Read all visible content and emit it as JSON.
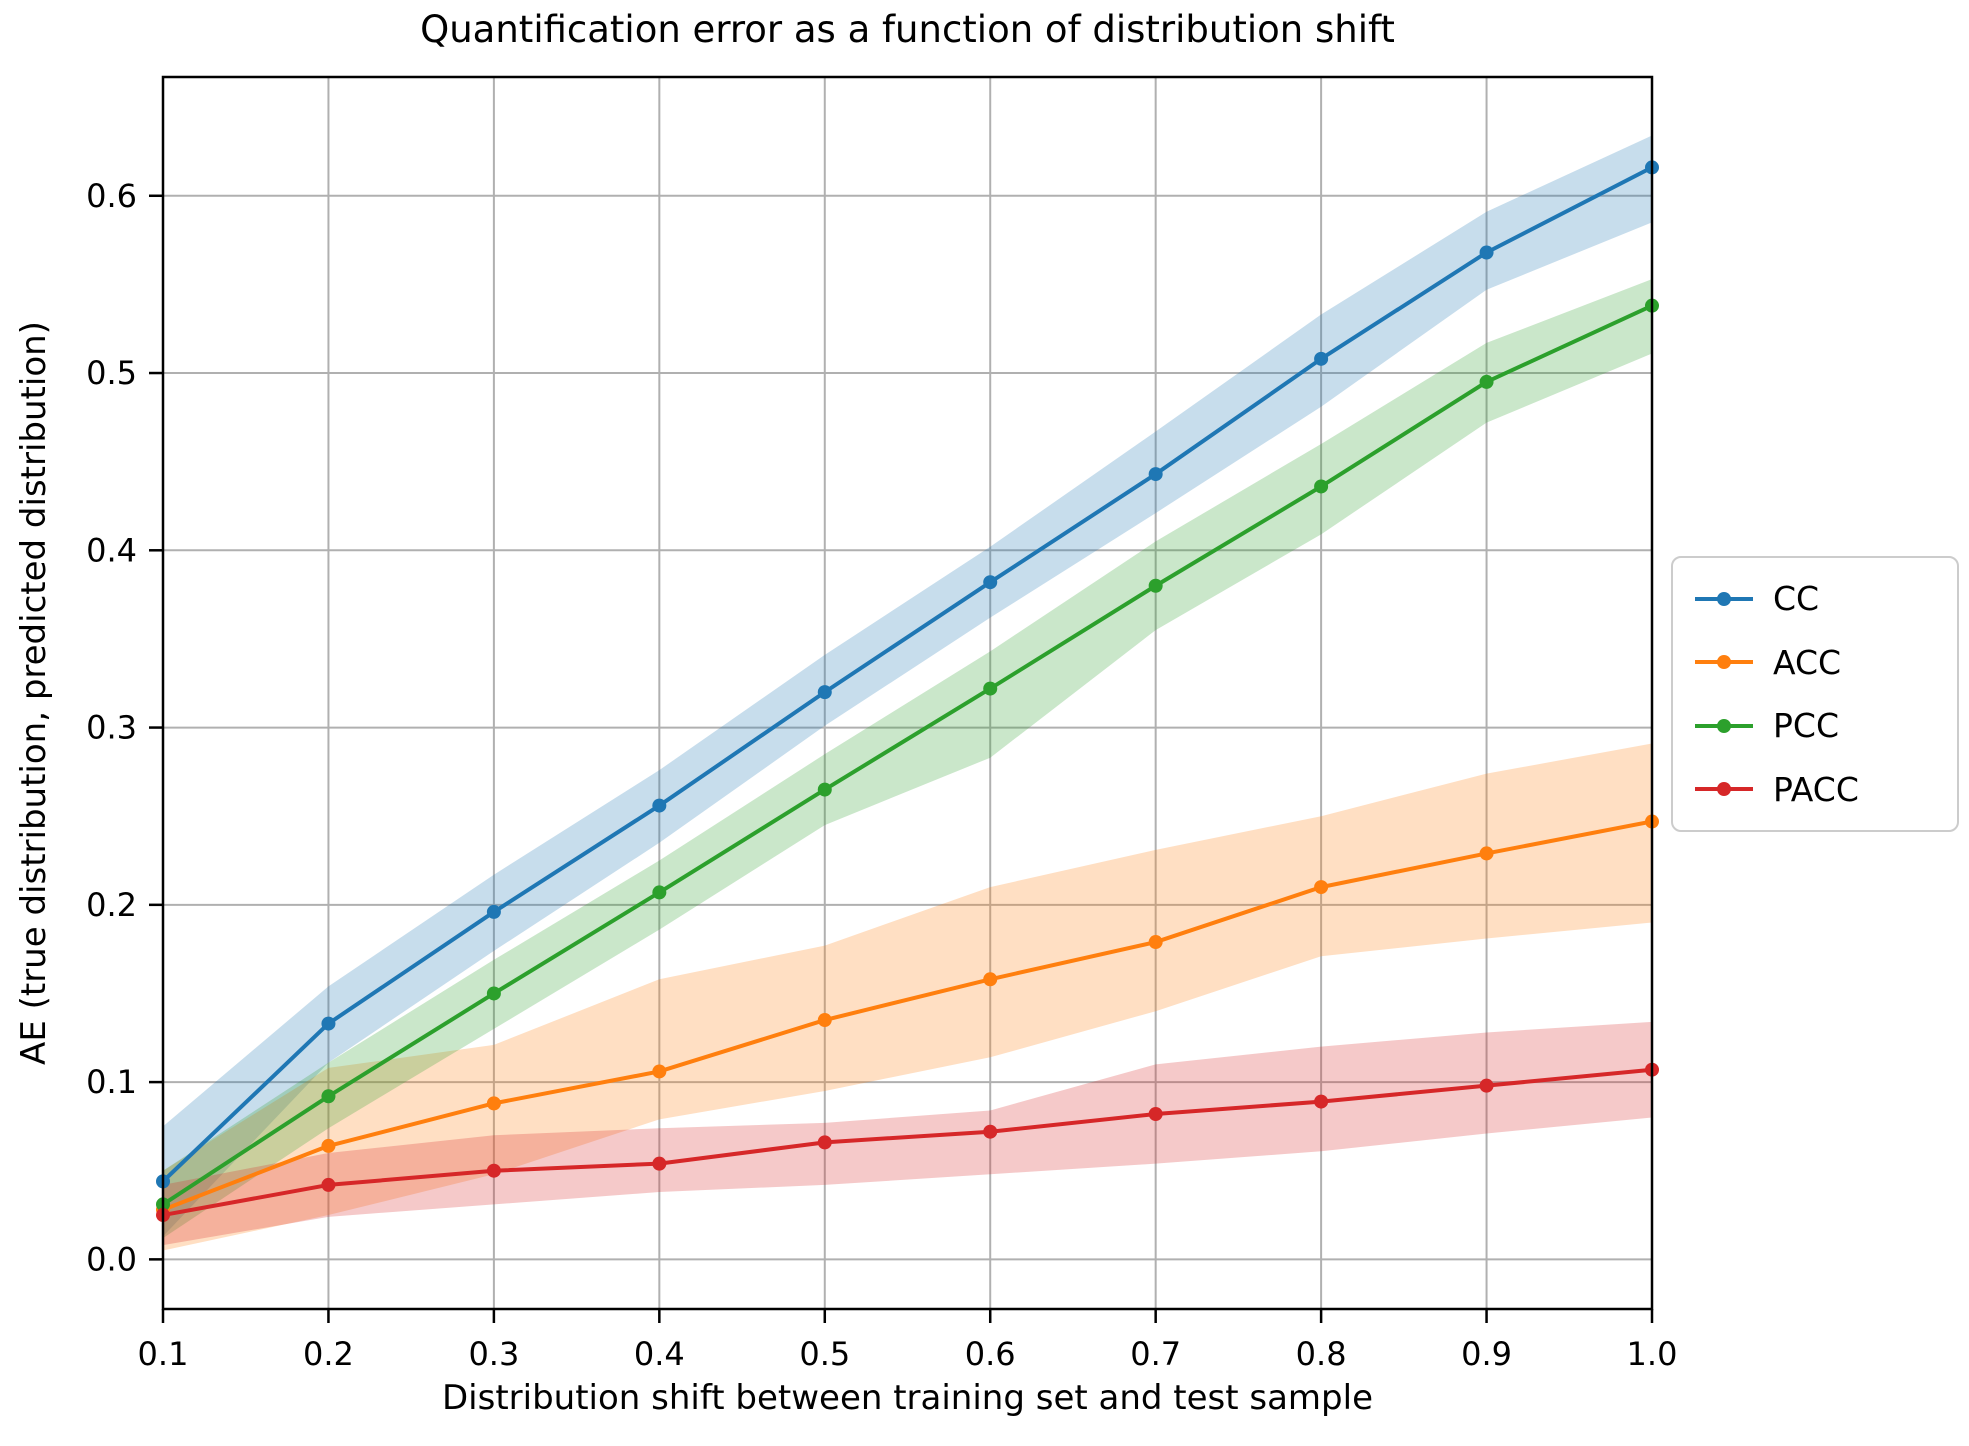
{
  "chart_data": {
    "type": "line",
    "title": "Quantification error as a function of distribution shift",
    "xlabel": "Distribution shift between training set and test sample",
    "ylabel": "AE (true distribution, predicted distribution)",
    "x": [
      0.1,
      0.2,
      0.3,
      0.4,
      0.5,
      0.6,
      0.7,
      0.8,
      0.9,
      1.0
    ],
    "xtick_labels": [
      "0.1",
      "0.2",
      "0.3",
      "0.4",
      "0.5",
      "0.6",
      "0.7",
      "0.8",
      "0.9",
      "1.0"
    ],
    "ytick_values": [
      0.0,
      0.1,
      0.2,
      0.3,
      0.4,
      0.5,
      0.6
    ],
    "ytick_labels": [
      "0.0",
      "0.1",
      "0.2",
      "0.3",
      "0.4",
      "0.5",
      "0.6"
    ],
    "xlim": [
      0.1,
      1.0
    ],
    "ylim": [
      -0.028,
      0.667
    ],
    "grid": true,
    "grid_color": "#b0b0b0",
    "band_opacity": 0.25,
    "legend_position": "outside-right",
    "marker": "circle",
    "series": [
      {
        "name": "CC",
        "color": "#1f77b4",
        "values": [
          0.044,
          0.133,
          0.196,
          0.256,
          0.32,
          0.382,
          0.443,
          0.508,
          0.568,
          0.616
        ],
        "band_low": [
          0.013,
          0.111,
          0.174,
          0.235,
          0.301,
          0.362,
          0.421,
          0.481,
          0.547,
          0.585
        ],
        "band_high": [
          0.075,
          0.154,
          0.217,
          0.276,
          0.341,
          0.402,
          0.467,
          0.533,
          0.591,
          0.634
        ]
      },
      {
        "name": "ACC",
        "color": "#ff7f0e",
        "values": [
          0.028,
          0.064,
          0.088,
          0.106,
          0.135,
          0.158,
          0.179,
          0.21,
          0.229,
          0.247
        ],
        "band_low": [
          0.005,
          0.025,
          0.048,
          0.079,
          0.095,
          0.114,
          0.14,
          0.171,
          0.181,
          0.19
        ],
        "band_high": [
          0.05,
          0.108,
          0.121,
          0.158,
          0.177,
          0.21,
          0.231,
          0.25,
          0.274,
          0.291
        ]
      },
      {
        "name": "PCC",
        "color": "#2ca02c",
        "values": [
          0.031,
          0.092,
          0.15,
          0.207,
          0.265,
          0.322,
          0.38,
          0.436,
          0.495,
          0.538
        ],
        "band_low": [
          0.012,
          0.074,
          0.13,
          0.186,
          0.245,
          0.283,
          0.355,
          0.409,
          0.472,
          0.511
        ],
        "band_high": [
          0.05,
          0.111,
          0.169,
          0.225,
          0.285,
          0.343,
          0.405,
          0.46,
          0.517,
          0.553
        ]
      },
      {
        "name": "PACC",
        "color": "#d62728",
        "values": [
          0.025,
          0.042,
          0.05,
          0.054,
          0.066,
          0.072,
          0.082,
          0.089,
          0.098,
          0.107
        ],
        "band_low": [
          0.008,
          0.024,
          0.031,
          0.038,
          0.042,
          0.048,
          0.054,
          0.061,
          0.071,
          0.08
        ],
        "band_high": [
          0.042,
          0.06,
          0.07,
          0.074,
          0.077,
          0.084,
          0.11,
          0.12,
          0.128,
          0.134
        ]
      }
    ]
  }
}
